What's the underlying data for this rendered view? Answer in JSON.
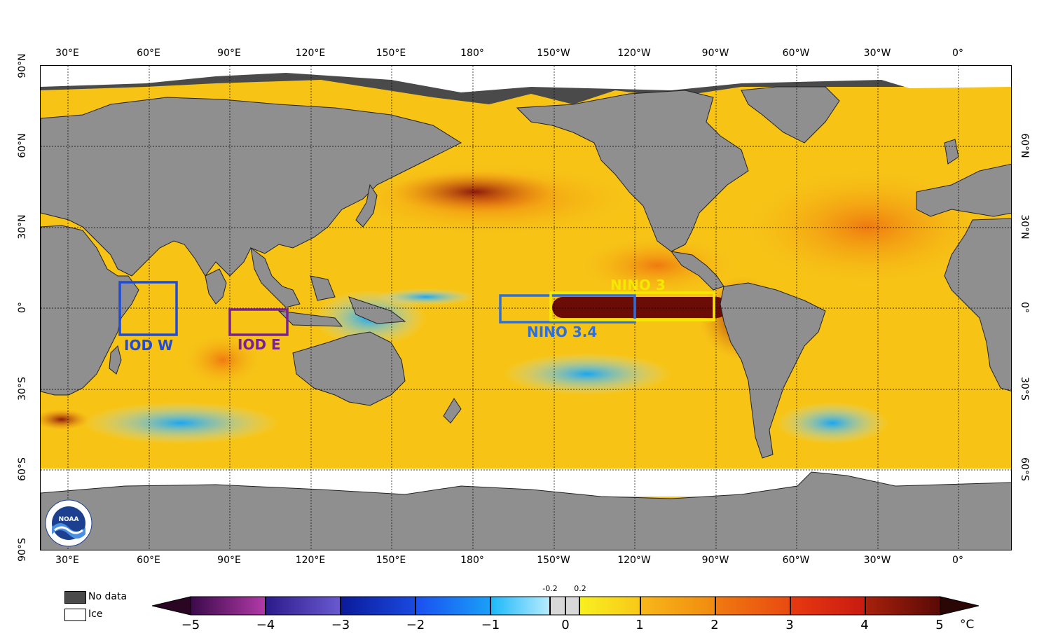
{
  "map": {
    "longitude_ticks": [
      "30°E",
      "60°E",
      "90°E",
      "120°E",
      "150°E",
      "180°",
      "150°W",
      "120°W",
      "90°W",
      "60°W",
      "30°W",
      "0°"
    ],
    "latitude_ticks_left": [
      "90°N",
      "60°N",
      "30°N",
      "0°",
      "30°S",
      "60°S",
      "90°S"
    ],
    "latitude_ticks_right": [
      "60°N",
      "30°N",
      "0°",
      "30°S",
      "60°S"
    ],
    "regions": [
      {
        "id": "iod-w",
        "label": "IOD W",
        "color": "#1f4bd8"
      },
      {
        "id": "iod-e",
        "label": "IOD E",
        "color": "#7a2390"
      },
      {
        "id": "nino34",
        "label": "NINO 3.4",
        "color": "#2f6fd9"
      },
      {
        "id": "nino3",
        "label": "NINO 3",
        "color": "#f4e800"
      }
    ],
    "logo_text": "NOAA"
  },
  "legend": {
    "no_data": "No data",
    "ice": "Ice",
    "no_data_color": "#4a4a4a",
    "ice_color": "#ffffff"
  },
  "colorbar": {
    "ticks": [
      "−5",
      "−4",
      "−3",
      "−2",
      "−1",
      "0",
      "1",
      "2",
      "3",
      "4",
      "5"
    ],
    "small_ticks": [
      "-0.2",
      "0.2"
    ],
    "unit": "°C",
    "range": [
      -5,
      5
    ]
  }
}
